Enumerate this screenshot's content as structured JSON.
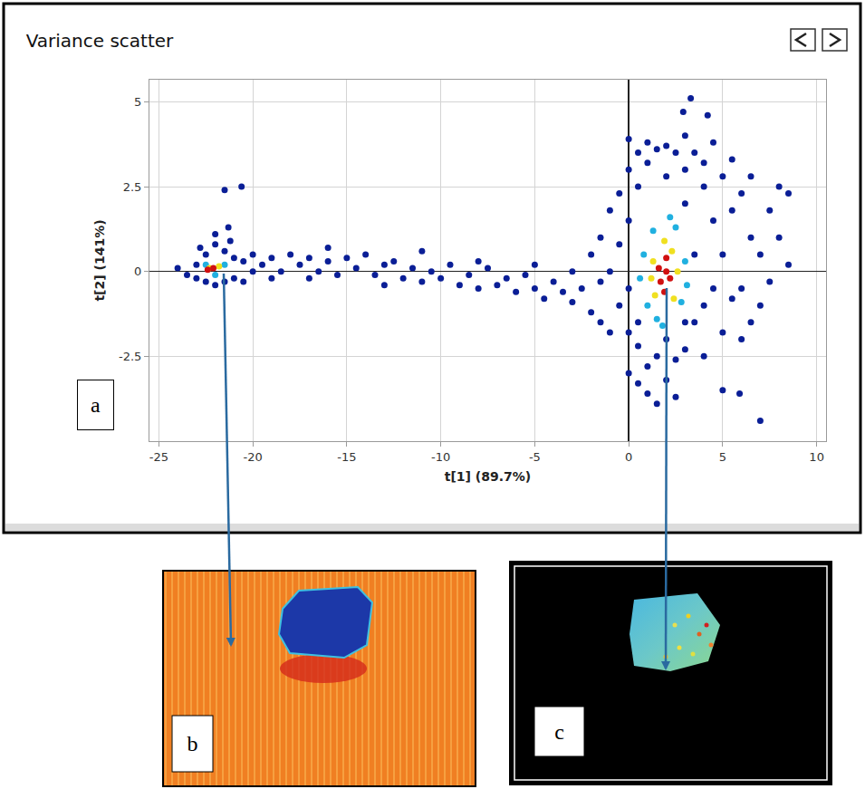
{
  "chart_data": {
    "type": "scatter",
    "title": "Variance scatter",
    "x_label": "t[1] (89.7%)",
    "y_label": "t[2] (141%)",
    "xlim": [
      -25.5,
      10.5
    ],
    "ylim": [
      -5,
      5.65
    ],
    "xticks": [
      -25,
      -20,
      -15,
      -10,
      -5,
      0,
      5,
      10
    ],
    "yticks": [
      -2.5,
      0,
      2.5,
      5
    ],
    "grid": true,
    "annotations": [
      {
        "text": "a"
      }
    ],
    "series": [
      {
        "color": "#0a1e96",
        "marker": "circle",
        "x": [
          -24,
          -23.5,
          -23,
          -23,
          -22.5,
          -22.5,
          -22,
          -22,
          -21.5,
          -21.5,
          -21,
          -21,
          -20.5,
          -20.5,
          -20,
          -20,
          -21.5,
          -20.6,
          -21.3,
          -22,
          -21.2,
          -22.8,
          -19.5,
          -19,
          -18.5,
          -18,
          -17.5,
          -17,
          -16.5,
          -16,
          -15.5,
          -15,
          -14.5,
          -14,
          -13.5,
          -13,
          -12.5,
          -12,
          -11.5,
          -11,
          -10.5,
          -10,
          -9.5,
          -9,
          -8.5,
          -8,
          -7.5,
          -7,
          -6.5,
          -6,
          -5.5,
          -5,
          -4.5,
          -4,
          -3.5,
          -3,
          -3,
          -17,
          -13,
          -8,
          -5,
          -11,
          -16,
          -19,
          -2.5,
          -2,
          -2,
          -1.5,
          -1.5,
          -1,
          -1,
          -1,
          -0.5,
          -0.5,
          -0.5,
          0,
          0,
          0,
          0,
          0,
          0,
          0.5,
          0.5,
          0.5,
          0.5,
          1,
          1,
          1,
          1,
          1.5,
          1.5,
          1.5,
          2,
          2,
          2,
          2,
          2.5,
          2.5,
          2.5,
          3,
          3,
          3,
          3,
          3.3,
          2.9,
          4.2,
          3.5,
          3.5,
          4,
          4,
          4,
          4,
          4.5,
          4.5,
          4.5,
          5,
          5,
          5,
          5,
          5.5,
          5.5,
          5.5,
          6,
          6,
          6,
          6.5,
          6.5,
          6.5,
          7,
          7,
          7,
          7.5,
          7.5,
          8,
          8,
          8.5,
          8.5,
          5.9,
          3.5,
          3,
          -1.5,
          0.5
        ],
        "values": [
          0.1,
          -0.1,
          0.2,
          -0.2,
          0.5,
          -0.3,
          0.8,
          -0.4,
          0.6,
          -0.3,
          0.4,
          -0.2,
          0.3,
          -0.3,
          0.5,
          0,
          2.4,
          2.5,
          1.3,
          1.1,
          0.9,
          0.7,
          0.2,
          0.4,
          0,
          0.5,
          0.2,
          0.4,
          0,
          0.3,
          -0.1,
          0.4,
          0.1,
          0.5,
          -0.1,
          0.2,
          0.3,
          -0.2,
          0.1,
          -0.3,
          0,
          -0.2,
          0.2,
          -0.4,
          -0.1,
          -0.5,
          0.1,
          -0.4,
          -0.2,
          -0.6,
          -0.1,
          -0.5,
          -0.8,
          -0.3,
          -0.6,
          -0.9,
          0,
          -0.2,
          -0.4,
          0.3,
          0.2,
          0.6,
          0.7,
          -0.2,
          -0.5,
          -1.2,
          0.5,
          1,
          -0.3,
          1.8,
          -1.8,
          0,
          2.3,
          -1,
          0.8,
          3.9,
          3,
          1.5,
          -0.5,
          -1.8,
          -3,
          3.5,
          2.5,
          -2.2,
          -3.3,
          3.8,
          3.2,
          -2.8,
          -3.6,
          3.6,
          -2.5,
          -3.9,
          3.7,
          2.8,
          -3.2,
          -2,
          3.5,
          -3.7,
          -2.6,
          4,
          3,
          -2.3,
          -1.5,
          5.1,
          4.7,
          4.6,
          3.5,
          -1.5,
          2.5,
          3.2,
          -1,
          -2.5,
          1.5,
          3.8,
          -0.5,
          2.8,
          0.5,
          -1.8,
          -3.5,
          3.3,
          1.8,
          -0.8,
          2.3,
          -0.5,
          -2,
          2.8,
          1,
          -1.5,
          0.5,
          -1,
          -4.4,
          1.8,
          -0.3,
          1,
          2.5,
          0.2,
          2.3,
          -3.6,
          0.5,
          2,
          -1.5,
          -1.5
        ]
      },
      {
        "color": "#20b0e0",
        "marker": "circle",
        "x": [
          -22.5,
          -21.5,
          -22,
          0.8,
          1,
          1.3,
          2.5,
          2.8,
          1.5,
          2.2,
          3,
          0.6,
          3.1,
          1.8
        ],
        "values": [
          0.2,
          0.2,
          -0.1,
          0.5,
          -1,
          1.2,
          1.3,
          -0.9,
          -1.4,
          1.6,
          0.3,
          -0.2,
          -0.4,
          -1.6
        ]
      },
      {
        "color": "#f0e020",
        "marker": "circle",
        "x": [
          -22.3,
          -21.8,
          1.3,
          2.3,
          2.4,
          1.4,
          1.9,
          2.6,
          1.2
        ],
        "values": [
          0.1,
          0.15,
          0.3,
          0.6,
          -0.8,
          -0.7,
          0.9,
          0,
          -0.2
        ]
      },
      {
        "color": "#d01010",
        "marker": "circle",
        "x": [
          -22.1,
          -22.4,
          1.7,
          2,
          1.9,
          2.2,
          1.6,
          2
        ],
        "values": [
          0.1,
          0.05,
          -0.3,
          0,
          -0.6,
          -0.2,
          0.1,
          0.4
        ]
      }
    ]
  },
  "images": [
    {
      "label": "b"
    },
    {
      "label": "c"
    }
  ]
}
